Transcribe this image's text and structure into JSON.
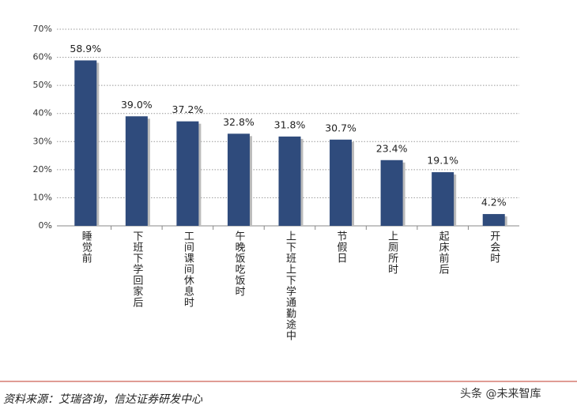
{
  "chart_data": {
    "type": "bar",
    "categories": [
      "睡觉前",
      "下班下学回家后",
      "工间课间休息时",
      "午晚饭吃饭时",
      "上下班上下学通勤途中",
      "节假日",
      "上厕所时",
      "起床前后",
      "开会时"
    ],
    "values": [
      58.9,
      39.0,
      37.2,
      32.8,
      31.8,
      30.7,
      23.4,
      19.1,
      4.2
    ],
    "value_labels": [
      "58.9%",
      "39.0%",
      "37.2%",
      "32.8%",
      "31.8%",
      "30.7%",
      "23.4%",
      "19.1%",
      "4.2%"
    ],
    "color": "#2f4b7c",
    "ylim": [
      0,
      70
    ],
    "yticks": [
      {
        "value": 0,
        "label": "0%"
      },
      {
        "value": 10,
        "label": "10%"
      },
      {
        "value": 20,
        "label": "20%"
      },
      {
        "value": 30,
        "label": "30%"
      },
      {
        "value": 40,
        "label": "40%"
      },
      {
        "value": 50,
        "label": "50%"
      },
      {
        "value": 60,
        "label": "60%"
      },
      {
        "value": 70,
        "label": "70%"
      }
    ],
    "grid": true
  },
  "footer": {
    "source": "资料来源：艾瑞咨询，信达证券研发中心",
    "watermark": "头条 @未来智库"
  }
}
